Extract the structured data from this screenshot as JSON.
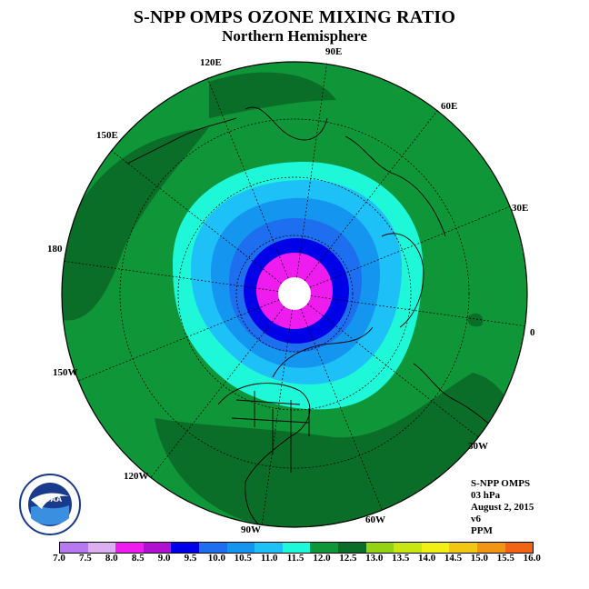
{
  "title": "S-NPP OMPS OZONE MIXING RATIO",
  "subtitle": "Northern Hemisphere",
  "longitude_labels": [
    "90E",
    "60E",
    "30E",
    "0",
    "30W",
    "60W",
    "90W",
    "120W",
    "150W",
    "180",
    "150E",
    "120E"
  ],
  "info": {
    "line1": "S-NPP OMPS",
    "line2": "03 hPa",
    "line3": "August 2, 2015",
    "line4": "v6",
    "line5": "PPM"
  },
  "logo": {
    "text": "NOAA",
    "ring_text": "NATIONAL OCEANIC AND ATMOSPHERIC ADMINISTRATION · U.S. DEPARTMENT OF COMMERCE"
  },
  "colorbar": {
    "ticks": [
      "7.0",
      "7.5",
      "8.0",
      "8.5",
      "9.0",
      "9.5",
      "10.0",
      "10.5",
      "11.0",
      "11.5",
      "12.0",
      "12.5",
      "13.0",
      "13.5",
      "14.0",
      "14.5",
      "15.0",
      "15.5",
      "16.0"
    ],
    "colors": [
      "#b779f0",
      "#dcb0f0",
      "#ee1cee",
      "#b010d0",
      "#0000e8",
      "#1e6ef0",
      "#1496f0",
      "#1ec0f8",
      "#1ef8d8",
      "#0e9638",
      "#0a6e28",
      "#96d214",
      "#c8e614",
      "#f0f014",
      "#f0c814",
      "#f09614",
      "#f06414",
      "#e61414",
      "#8c5a3c"
    ]
  },
  "contours": [
    {
      "level": "11.5-12.0",
      "color": "#0a6e28"
    },
    {
      "level": "11.0-11.5",
      "color": "#0e9638"
    },
    {
      "level": "10.5-11.0",
      "color": "#1ef8d8"
    },
    {
      "level": "10.0-10.5",
      "color": "#1ec0f8"
    },
    {
      "level": "9.5-10.0",
      "color": "#1496f0"
    },
    {
      "level": "9.0-9.5",
      "color": "#1e6ef0"
    },
    {
      "level": "8.5-9.0",
      "color": "#0000e8"
    },
    {
      "level": "8.0-8.5",
      "color": "#ee1cee"
    }
  ]
}
